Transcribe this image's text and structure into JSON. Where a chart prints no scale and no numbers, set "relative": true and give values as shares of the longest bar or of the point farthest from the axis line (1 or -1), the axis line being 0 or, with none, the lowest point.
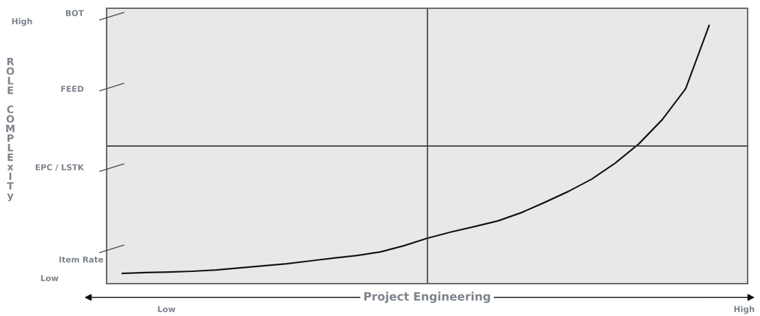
{
  "chart_data": {
    "type": "line",
    "relative": true,
    "xlabel": "Project Engineering",
    "ylabel": "ROLE COMPLExITy",
    "categories": [
      null,
      null,
      null,
      null,
      null,
      null,
      null,
      null,
      null,
      null,
      null,
      null,
      null,
      null,
      null,
      null,
      null,
      null,
      null,
      null,
      null,
      null,
      null,
      null,
      null,
      null
    ],
    "series": [
      {
        "color": "#111111",
        "values": [
          0.04,
          0.043,
          0.045,
          0.048,
          0.053,
          0.061,
          0.069,
          0.077,
          0.088,
          0.099,
          0.109,
          0.123,
          0.147,
          0.176,
          0.2,
          0.221,
          0.243,
          0.275,
          0.315,
          0.357,
          0.405,
          0.467,
          0.541,
          0.635,
          0.755,
          1
        ]
      }
    ],
    "ref_lines": [
      {
        "axis": "y",
        "value": 0.533,
        "color": "#333333"
      }
    ],
    "annotations": [
      "High",
      "BOT",
      "FEED",
      "EPC / LSTK",
      "Item Rate",
      "Low",
      "Low",
      "High"
    ],
    "grid": false,
    "legend": false,
    "marker": "none",
    "line_style": "solid"
  }
}
